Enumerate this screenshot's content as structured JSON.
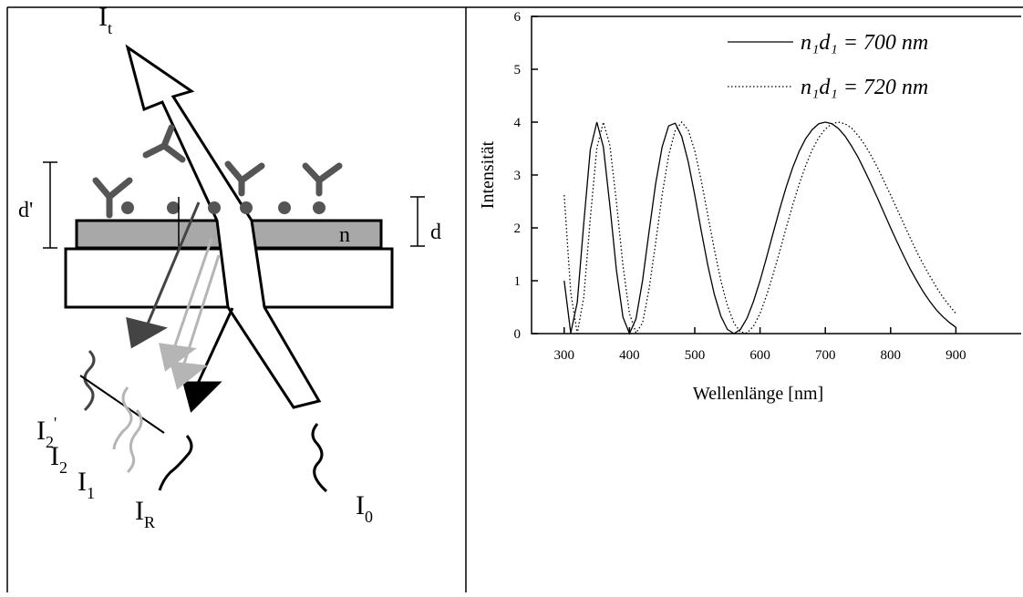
{
  "diagram": {
    "labels": {
      "it": {
        "main": "I",
        "sub": "t"
      },
      "d_prime": "d'",
      "d": "d",
      "n": "n",
      "i2_prime": {
        "main": "I",
        "sub": "2",
        "sup": "'"
      },
      "i2": {
        "main": "I",
        "sub": "2"
      },
      "i1": {
        "main": "I",
        "sub": "1"
      },
      "ir": {
        "main": "I",
        "sub": "R"
      },
      "i0": {
        "main": "I",
        "sub": "0"
      }
    }
  },
  "chart_data": {
    "type": "line",
    "xlabel": "Wellenlänge [nm]",
    "ylabel": "Intensität",
    "x": [
      300,
      310,
      320,
      330,
      340,
      350,
      360,
      370,
      380,
      390,
      400,
      410,
      420,
      430,
      440,
      450,
      460,
      470,
      480,
      490,
      500,
      510,
      520,
      530,
      540,
      550,
      560,
      570,
      580,
      590,
      600,
      610,
      620,
      630,
      640,
      650,
      660,
      670,
      680,
      690,
      700,
      710,
      720,
      730,
      740,
      750,
      760,
      770,
      780,
      790,
      800,
      810,
      820,
      830,
      840,
      850,
      860,
      870,
      880,
      890,
      900
    ],
    "series": [
      {
        "name": "n₁d₁ =  700 nm",
        "color": "#000000",
        "dash": "solid",
        "values": [
          1.0,
          0.01,
          0.59,
          2.09,
          3.48,
          4.0,
          3.53,
          2.42,
          1.2,
          0.31,
          0.0,
          0.28,
          1.0,
          1.93,
          2.83,
          3.53,
          3.93,
          3.98,
          3.73,
          3.25,
          2.62,
          1.94,
          1.29,
          0.74,
          0.33,
          0.08,
          0.0,
          0.08,
          0.29,
          0.61,
          1.0,
          1.44,
          1.9,
          2.35,
          2.77,
          3.14,
          3.45,
          3.69,
          3.86,
          3.97,
          4.0,
          3.97,
          3.88,
          3.74,
          3.55,
          3.34,
          3.09,
          2.83,
          2.56,
          2.28,
          2.0,
          1.73,
          1.47,
          1.22,
          1.0,
          0.79,
          0.61,
          0.45,
          0.32,
          0.21,
          0.12
        ]
      },
      {
        "name": "n₁d₁ =  720 nm",
        "color": "#000000",
        "dash": "dotted",
        "values": [
          2.62,
          0.78,
          0.0,
          0.69,
          2.18,
          3.51,
          4.0,
          3.56,
          2.49,
          1.29,
          0.38,
          0.01,
          0.2,
          0.84,
          1.71,
          2.62,
          3.37,
          3.84,
          4.0,
          3.85,
          3.46,
          2.89,
          2.24,
          1.59,
          1.0,
          0.53,
          0.2,
          0.03,
          0.01,
          0.14,
          0.38,
          0.72,
          1.12,
          1.55,
          2.0,
          2.43,
          2.83,
          3.18,
          3.48,
          3.71,
          3.87,
          3.97,
          4.0,
          3.97,
          3.89,
          3.75,
          3.58,
          3.37,
          3.14,
          2.88,
          2.62,
          2.35,
          2.08,
          1.81,
          1.55,
          1.31,
          1.09,
          0.88,
          0.69,
          0.53,
          0.38
        ]
      }
    ],
    "xlim": [
      250,
      1000
    ],
    "ylim": [
      0,
      6
    ],
    "xticks": [
      300,
      400,
      500,
      600,
      700,
      800,
      900
    ],
    "yticks": [
      0,
      1,
      2,
      3,
      4,
      5,
      6
    ],
    "legend": "upper right"
  }
}
